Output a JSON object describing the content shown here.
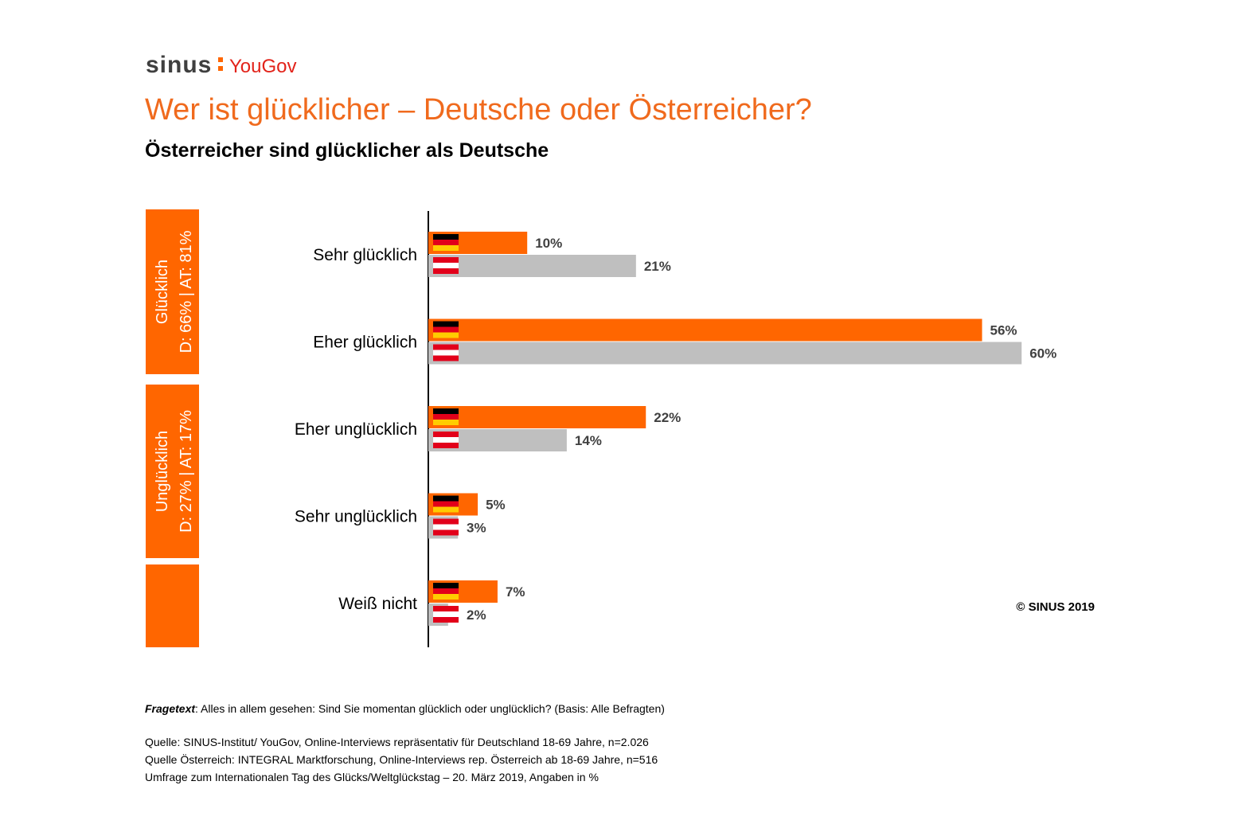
{
  "logo": {
    "brand": "sinus",
    "partner": "YouGov"
  },
  "chart_data": {
    "type": "hbar",
    "title": "Wer ist glücklicher – Deutsche oder Österreicher?",
    "subtitle": "Österreicher sind glücklicher als Deutsche",
    "categories": [
      "Sehr glücklich",
      "Eher glücklich",
      "Eher unglücklich",
      "Sehr unglücklich",
      "Weiß nicht"
    ],
    "series": [
      {
        "color": "#ff6600",
        "flag": "de",
        "values": [
          10,
          56,
          22,
          5,
          7
        ],
        "value_labels": [
          "10%",
          "56%",
          "22%",
          "5%",
          "7%"
        ]
      },
      {
        "color": "#bfbfbf",
        "flag": "at",
        "values": [
          21,
          60,
          14,
          3,
          2
        ],
        "value_labels": [
          "21%",
          "60%",
          "14%",
          "3%",
          "2%"
        ]
      }
    ],
    "groups": [
      {
        "label": "Glücklich",
        "sublabel": "D: 66% | AT: 81%",
        "rows": 2
      },
      {
        "label": "Unglücklich",
        "sublabel": "D: 27% | AT: 17%",
        "rows": 2
      }
    ],
    "copyright": "© SINUS 2019",
    "footnotes": {
      "question_label": "Fragetext",
      "question": ": Alles in allem gesehen: Sind Sie momentan glücklich oder unglücklich? (Basis: Alle Befragten)",
      "sources": [
        "Quelle: SINUS-Institut/ YouGov, Online-Interviews repräsentativ für Deutschland 18-69 Jahre, n=2.026",
        "Quelle Österreich: INTEGRAL Marktforschung, Online-Interviews rep. Österreich ab 18-69 Jahre, n=516",
        "Umfrage zum Internationalen Tag des Glücks/Weltglückstag – 20. März 2019, Angaben in %"
      ]
    }
  }
}
